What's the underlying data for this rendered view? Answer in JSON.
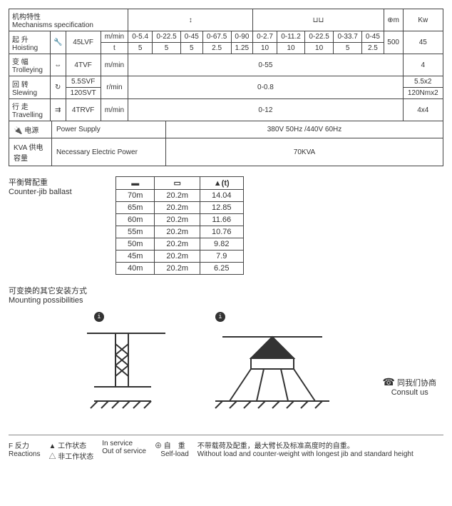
{
  "spec": {
    "title_cn": "机构特性",
    "title_en": "Mechanisms specification",
    "col_icons": [
      "↕",
      "⊔⊔",
      "⊕m",
      "Kw"
    ],
    "rows": {
      "hoist": {
        "label_cn": "起 升",
        "label_en": "Hoisting",
        "model": "45LVF",
        "line1_unit": "m/min",
        "line1": [
          "0-5.4",
          "0-22.5",
          "0-45",
          "0-67.5",
          "0-90",
          "0-2.7",
          "0-11.2",
          "0-22.5",
          "0-33.7",
          "0-45"
        ],
        "line2_unit": "t",
        "line2": [
          "5",
          "5",
          "5",
          "2.5",
          "1.25",
          "10",
          "10",
          "10",
          "5",
          "2.5"
        ],
        "radius": "500",
        "kw": "45"
      },
      "trolley": {
        "label_cn": "变 幅",
        "label_en": "Trolleying",
        "model": "4TVF",
        "unit": "m/min",
        "val": "0-55",
        "kw": "4"
      },
      "slew": {
        "label_cn": "回 转",
        "label_en": "Slewing",
        "model1": "5.5SVF",
        "model2": "120SVT",
        "unit": "r/min",
        "val": "0-0.8",
        "kw1": "5.5x2",
        "kw2": "120Nmx2"
      },
      "travel": {
        "label_cn": "行 走",
        "label_en": "Travelling",
        "model": "4TRVF",
        "unit": "m/min",
        "val": "0-12",
        "kw": "4x4"
      }
    },
    "power_label_cn": "电源",
    "power_label_en": "Power Supply",
    "power_val": "380V 50Hz /440V 60Hz",
    "kva_label_cn": "KVA  供电容量",
    "kva_label_en": "Necessary Electric Power",
    "kva_val": "70KVA"
  },
  "ballast": {
    "title_cn": "平衡臂配重",
    "title_en": "Counter-jib ballast",
    "head": [
      "▬",
      "▭",
      "▲(t)"
    ],
    "rows": [
      [
        "70m",
        "20.2m",
        "14.04"
      ],
      [
        "65m",
        "20.2m",
        "12.85"
      ],
      [
        "60m",
        "20.2m",
        "11.66"
      ],
      [
        "55m",
        "20.2m",
        "10.76"
      ],
      [
        "50m",
        "20.2m",
        "9.82"
      ],
      [
        "45m",
        "20.2m",
        "7.9"
      ],
      [
        "40m",
        "20.2m",
        "6.25"
      ]
    ]
  },
  "mounting": {
    "title_cn": "可变换的其它安装方式",
    "title_en": "Mounting possibilities",
    "consult_cn": "同我们协商",
    "consult_en": "Consult us"
  },
  "footer": {
    "f_cn": "F 反力",
    "f_en": "Reactions",
    "inservice_cn": "工作状态",
    "inservice_en": "In service",
    "outservice_cn": "非工作状态",
    "outservice_en": "Out of service",
    "self_cn": "自　重",
    "self_en": "Self-load",
    "self_desc_cn": "不带载荷及配重，最大臂长及标准高度时的自重。",
    "self_desc_en": "Without load and counter-weight with longest jib and standard height"
  }
}
